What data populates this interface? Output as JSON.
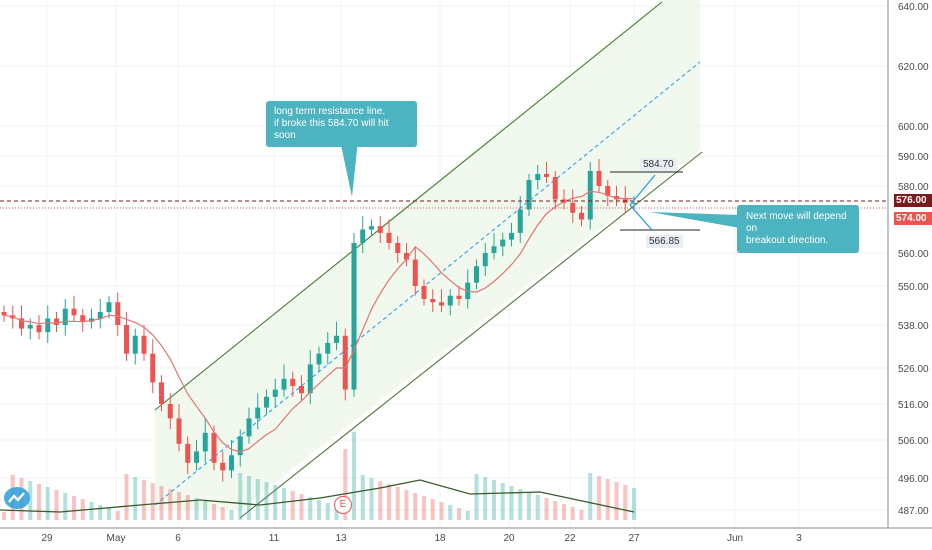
{
  "chart_data": {
    "type": "candlestick",
    "y_ticks": [
      "640.00",
      "620.00",
      "600.00",
      "590.00",
      "580.00",
      "560.00",
      "550.00",
      "538.00",
      "526.00",
      "516.00",
      "506.00",
      "496.00",
      "487.00"
    ],
    "x_ticks": [
      "29",
      "May",
      "6",
      "11",
      "13",
      "18",
      "20",
      "22",
      "27",
      "Jun",
      "3"
    ],
    "price_labels": {
      "current": "576.00",
      "support": "574.00"
    },
    "levels": {
      "upper_target": "584.70",
      "lower_target": "566.85"
    },
    "series": [
      {
        "name": "candles",
        "values_close": [
          541,
          540,
          537,
          538,
          536,
          540,
          538,
          543,
          541,
          539,
          540,
          542,
          545,
          538,
          530,
          535,
          530,
          522,
          516,
          512,
          505,
          500,
          503,
          508,
          500,
          498,
          502,
          507,
          512,
          515,
          518,
          520,
          523,
          521,
          519,
          527,
          530,
          533,
          535,
          520,
          563,
          567,
          568,
          566,
          563,
          560,
          558,
          550,
          546,
          545,
          544,
          547,
          546,
          551,
          556,
          560,
          562,
          564,
          566,
          573,
          582,
          584,
          583,
          576,
          575,
          572,
          570,
          585,
          580,
          577,
          576,
          575,
          575
        ]
      }
    ],
    "moving_average_color": "#e57373",
    "channel_color": "#4a7a3a",
    "midline_color": "#2196f3"
  },
  "annotations": {
    "resistance_note_line1": "long term resistance line.",
    "resistance_note_line2": "if broke this 584.70 will hit soon",
    "breakout_note_line1": "Next move will depend on",
    "breakout_note_line2": "breakout direction."
  },
  "markers": {
    "earnings_label": "E"
  },
  "colors": {
    "up": "#26a69a",
    "down": "#ef5350",
    "callout": "#4cb3c0",
    "current_price_bg": "#7b1a1a",
    "support_bg": "#ef5350"
  }
}
